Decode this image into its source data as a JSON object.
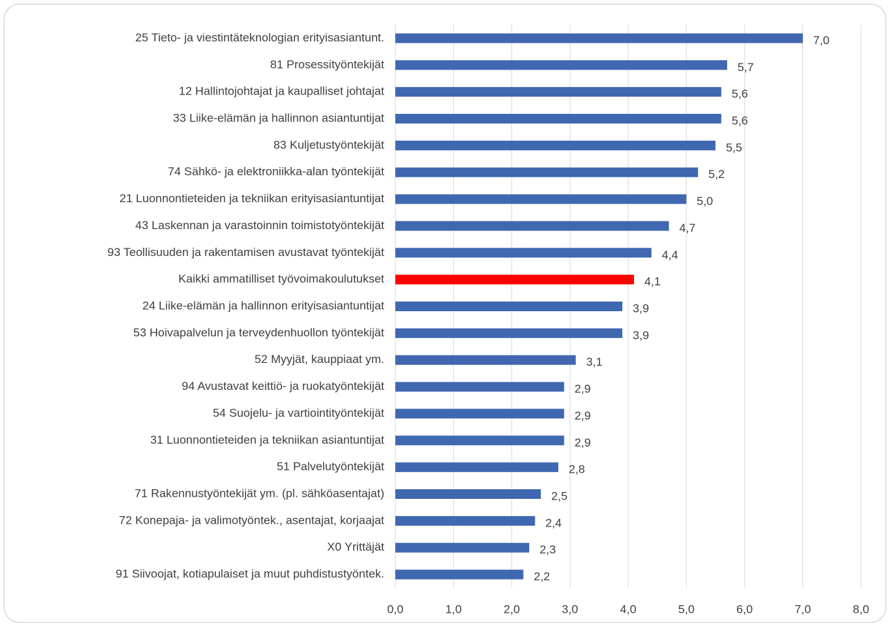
{
  "chart_data": {
    "type": "barh",
    "categories": [
      "25 Tieto- ja viestintäteknologian erityisasiantunt.",
      "81 Prosessityöntekijät",
      "12 Hallintojohtajat ja kaupalliset johtajat",
      "33 Liike-elämän ja hallinnon asiantuntijat",
      "83 Kuljetustyöntekijät",
      "74 Sähkö- ja elektroniikka-alan työntekijät",
      "21 Luonnontieteiden ja tekniikan erityisasiantuntijat",
      "43 Laskennan ja varastoinnin toimistotyöntekijät",
      "93 Teollisuuden ja rakentamisen avustavat työntekijät",
      "Kaikki ammatilliset työvoimakoulutukset",
      "24 Liike-elämän ja hallinnon erityisasiantuntijat",
      "53 Hoivapalvelun ja terveydenhuollon työntekijät",
      "52 Myyjät, kauppiaat ym.",
      "94 Avustavat keittiö- ja ruokatyöntekijät",
      "54 Suojelu- ja vartiointityöntekijät",
      "31 Luonnontieteiden ja tekniikan asiantuntijat",
      "51 Palvelutyöntekijät",
      "71 Rakennustyöntekijät ym. (pl. sähköasentajat)",
      "72 Konepaja- ja valimotyöntek., asentajat, korjaajat",
      "X0 Yrittäjät",
      "91 Siivoojat, kotiapulaiset ja muut puhdistustyöntek."
    ],
    "values": [
      7.0,
      5.7,
      5.6,
      5.6,
      5.5,
      5.2,
      5.0,
      4.7,
      4.4,
      4.1,
      3.9,
      3.9,
      3.1,
      2.9,
      2.9,
      2.9,
      2.8,
      2.5,
      2.4,
      2.3,
      2.2
    ],
    "value_labels": [
      "7,0",
      "5,7",
      "5,6",
      "5,6",
      "5,5",
      "5,2",
      "5,0",
      "4,7",
      "4,4",
      "4,1",
      "3,9",
      "3,9",
      "3,1",
      "2,9",
      "2,9",
      "2,9",
      "2,8",
      "2,5",
      "2,4",
      "2,3",
      "2,2"
    ],
    "colors": [
      "#4068b0",
      "#4068b0",
      "#4068b0",
      "#4068b0",
      "#4068b0",
      "#4068b0",
      "#4068b0",
      "#4068b0",
      "#4068b0",
      "#ff0000",
      "#4068b0",
      "#4068b0",
      "#4068b0",
      "#4068b0",
      "#4068b0",
      "#4068b0",
      "#4068b0",
      "#4068b0",
      "#4068b0",
      "#4068b0",
      "#4068b0"
    ],
    "xlim": [
      0,
      8
    ],
    "xticks": [
      {
        "value": 0,
        "label": "0,0"
      },
      {
        "value": 1,
        "label": "1,0"
      },
      {
        "value": 2,
        "label": "2,0"
      },
      {
        "value": 3,
        "label": "3,0"
      },
      {
        "value": 4,
        "label": "4,0"
      },
      {
        "value": 5,
        "label": "5,0"
      },
      {
        "value": 6,
        "label": "6,0"
      },
      {
        "value": 7,
        "label": "7,0"
      },
      {
        "value": 8,
        "label": "8,0"
      }
    ],
    "grid": true
  }
}
